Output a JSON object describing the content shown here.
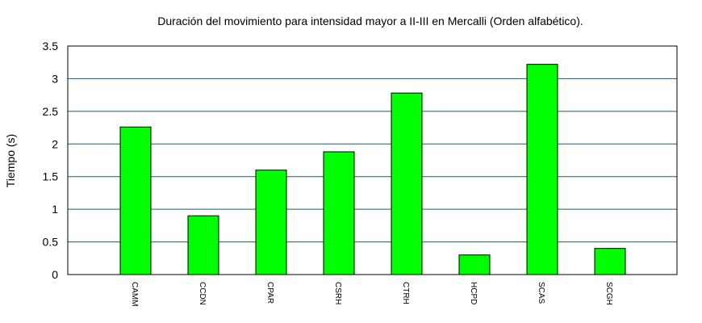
{
  "chart_data": {
    "type": "bar",
    "title": "Duración del movimiento para intensidad mayor a II-III en Mercalli (Orden alfabético).",
    "xlabel": "",
    "ylabel": "Tiempo (s)",
    "categories": [
      "CAMM",
      "CCDN",
      "CPAR",
      "CSRH",
      "CTRH",
      "HCPD",
      "SCAS",
      "SCGH"
    ],
    "values": [
      2.26,
      0.9,
      1.6,
      1.88,
      2.78,
      0.3,
      3.22,
      0.4
    ],
    "ylim": [
      0,
      3.5
    ],
    "yticks": [
      "0",
      "0.5",
      "1",
      "1.5",
      "2",
      "2.5",
      "3",
      "3.5"
    ],
    "grid": true,
    "legend": "none",
    "colors": {
      "bar": "#00ff00",
      "bar_stroke": "#000000",
      "grid": "#1b5a78",
      "axis": "#000000"
    }
  }
}
